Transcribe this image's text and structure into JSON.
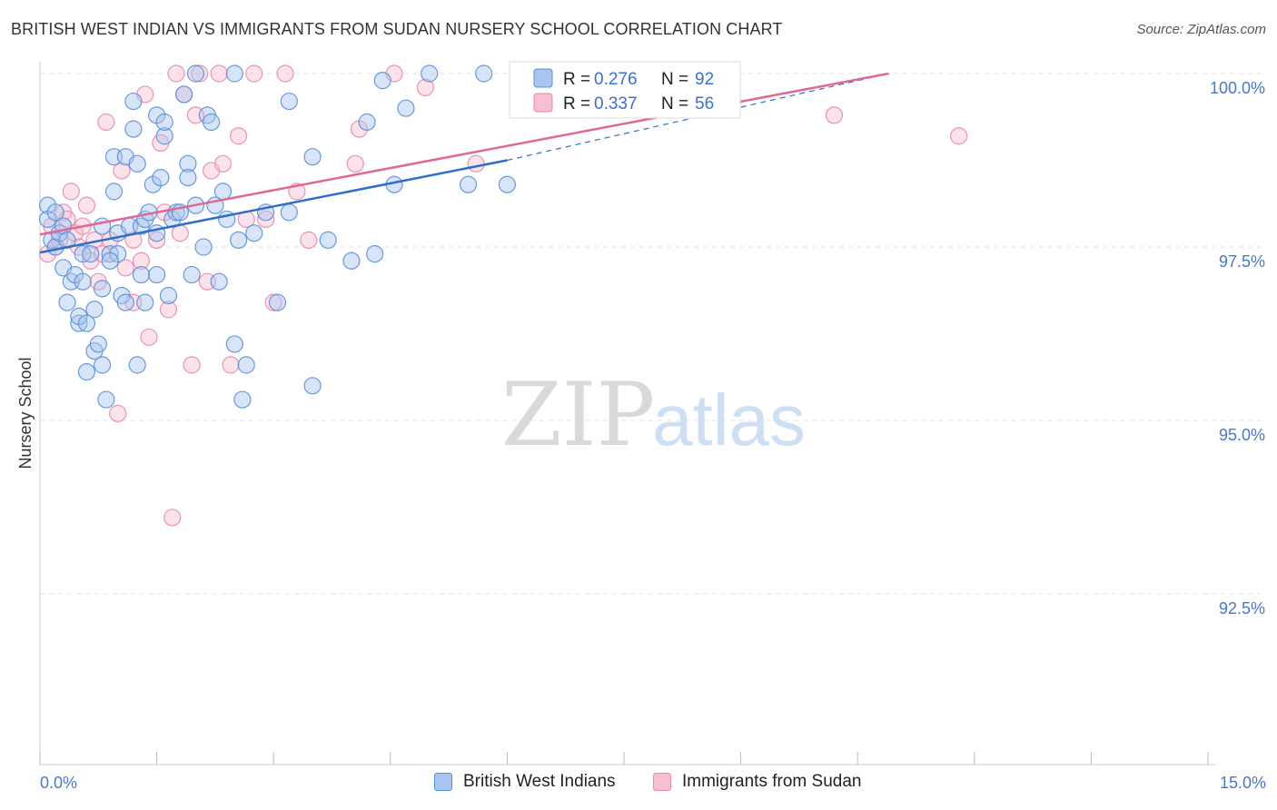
{
  "title": "BRITISH WEST INDIAN VS IMMIGRANTS FROM SUDAN NURSERY SCHOOL CORRELATION CHART",
  "source": "Source: ZipAtlas.com",
  "watermark": {
    "zip": "ZIP",
    "atlas": "atlas"
  },
  "colors": {
    "blue_fill": "#a9c6f0",
    "blue_stroke": "#5b8fd6",
    "blue_line": "#2f6fc9",
    "pink_fill": "#f6bfd2",
    "pink_stroke": "#e58aab",
    "pink_line": "#e06895",
    "grid": "#e3e3e3",
    "tick_label": "#4a78c8"
  },
  "legend": {
    "series": [
      {
        "r_label": "R =",
        "r_value": "0.276",
        "n_label": "N =",
        "n_value": "92"
      },
      {
        "r_label": "R =",
        "r_value": "0.337",
        "n_label": "N =",
        "n_value": "56"
      }
    ]
  },
  "bottom_legend": [
    "British West Indians",
    "Immigrants from Sudan"
  ],
  "chart_data": {
    "type": "scatter",
    "title": "BRITISH WEST INDIAN VS IMMIGRANTS FROM SUDAN NURSERY SCHOOL CORRELATION CHART",
    "xlabel": "",
    "ylabel": "Nursery School",
    "xlim": [
      0,
      15
    ],
    "ylim": [
      90.0,
      100.5
    ],
    "x_tick_labels": {
      "left": "0.0%",
      "right": "15.0%"
    },
    "y_ticks": [
      {
        "value": 100.0,
        "label": "100.0%"
      },
      {
        "value": 97.5,
        "label": "97.5%"
      },
      {
        "value": 95.0,
        "label": "95.0%"
      },
      {
        "value": 92.5,
        "label": "92.5%"
      }
    ],
    "series": [
      {
        "name": "British West Indians",
        "color": "blue",
        "R": 0.276,
        "N": 92,
        "trend": {
          "x0": 0.0,
          "y0": 97.42,
          "x1": 6.0,
          "y1": 98.75,
          "dash_to_x": 10.9,
          "dash_to_y": 100.0
        },
        "points": [
          [
            0.1,
            98.1
          ],
          [
            0.1,
            97.9
          ],
          [
            0.15,
            97.6
          ],
          [
            0.2,
            98.0
          ],
          [
            0.2,
            97.5
          ],
          [
            0.25,
            97.7
          ],
          [
            0.3,
            97.8
          ],
          [
            0.3,
            97.2
          ],
          [
            0.35,
            96.7
          ],
          [
            0.35,
            97.6
          ],
          [
            0.4,
            97.0
          ],
          [
            0.45,
            97.1
          ],
          [
            0.5,
            96.4
          ],
          [
            0.5,
            96.5
          ],
          [
            0.55,
            97.0
          ],
          [
            0.55,
            97.4
          ],
          [
            0.6,
            95.7
          ],
          [
            0.65,
            97.4
          ],
          [
            0.7,
            96.6
          ],
          [
            0.7,
            96.0
          ],
          [
            0.75,
            96.1
          ],
          [
            0.8,
            95.8
          ],
          [
            0.8,
            96.9
          ],
          [
            0.85,
            95.3
          ],
          [
            0.9,
            97.4
          ],
          [
            0.95,
            98.3
          ],
          [
            0.95,
            98.8
          ],
          [
            1.0,
            97.4
          ],
          [
            1.0,
            97.7
          ],
          [
            1.05,
            96.8
          ],
          [
            1.1,
            98.8
          ],
          [
            1.1,
            96.7
          ],
          [
            1.15,
            97.8
          ],
          [
            1.2,
            99.2
          ],
          [
            1.2,
            99.6
          ],
          [
            1.25,
            98.7
          ],
          [
            1.25,
            95.8
          ],
          [
            1.3,
            97.8
          ],
          [
            1.35,
            96.7
          ],
          [
            1.35,
            97.9
          ],
          [
            1.4,
            98.0
          ],
          [
            1.45,
            98.4
          ],
          [
            1.5,
            97.1
          ],
          [
            1.5,
            99.4
          ],
          [
            1.55,
            98.5
          ],
          [
            1.6,
            99.1
          ],
          [
            1.6,
            99.3
          ],
          [
            1.65,
            96.8
          ],
          [
            1.7,
            97.9
          ],
          [
            1.75,
            98.0
          ],
          [
            1.8,
            98.0
          ],
          [
            1.85,
            99.7
          ],
          [
            1.9,
            98.7
          ],
          [
            1.95,
            97.1
          ],
          [
            2.0,
            100.0
          ],
          [
            2.1,
            97.5
          ],
          [
            2.15,
            99.4
          ],
          [
            2.2,
            99.3
          ],
          [
            2.25,
            98.1
          ],
          [
            2.3,
            97.0
          ],
          [
            2.35,
            98.3
          ],
          [
            2.4,
            97.9
          ],
          [
            2.5,
            100.0
          ],
          [
            2.5,
            96.1
          ],
          [
            2.55,
            97.6
          ],
          [
            2.6,
            95.3
          ],
          [
            2.65,
            95.8
          ],
          [
            2.9,
            98.0
          ],
          [
            3.05,
            96.7
          ],
          [
            3.2,
            99.6
          ],
          [
            3.5,
            98.8
          ],
          [
            3.5,
            95.5
          ],
          [
            3.7,
            97.6
          ],
          [
            4.2,
            99.3
          ],
          [
            4.3,
            97.4
          ],
          [
            4.4,
            99.9
          ],
          [
            4.55,
            98.4
          ],
          [
            4.7,
            99.5
          ],
          [
            5.0,
            100.0
          ],
          [
            5.5,
            98.4
          ],
          [
            5.7,
            100.0
          ],
          [
            6.0,
            98.4
          ],
          [
            0.8,
            97.8
          ],
          [
            0.9,
            97.3
          ],
          [
            1.5,
            97.7
          ],
          [
            2.0,
            98.1
          ],
          [
            2.75,
            97.7
          ],
          [
            0.6,
            96.4
          ],
          [
            1.9,
            98.5
          ],
          [
            1.3,
            97.1
          ],
          [
            4.0,
            97.3
          ],
          [
            3.2,
            98.0
          ]
        ]
      },
      {
        "name": "Immigrants from Sudan",
        "color": "pink",
        "R": 0.337,
        "N": 56,
        "trend": {
          "x0": 0.0,
          "y0": 97.68,
          "x1": 10.9,
          "y1": 100.0
        },
        "points": [
          [
            0.1,
            97.4
          ],
          [
            0.15,
            97.8
          ],
          [
            0.2,
            97.5
          ],
          [
            0.25,
            97.6
          ],
          [
            0.3,
            98.0
          ],
          [
            0.35,
            97.9
          ],
          [
            0.4,
            98.3
          ],
          [
            0.45,
            97.7
          ],
          [
            0.5,
            97.5
          ],
          [
            0.55,
            97.8
          ],
          [
            0.6,
            98.1
          ],
          [
            0.65,
            97.3
          ],
          [
            0.75,
            97.0
          ],
          [
            0.8,
            97.4
          ],
          [
            0.85,
            99.3
          ],
          [
            0.9,
            97.6
          ],
          [
            1.0,
            95.1
          ],
          [
            1.05,
            98.6
          ],
          [
            1.1,
            97.2
          ],
          [
            1.2,
            96.7
          ],
          [
            1.3,
            97.3
          ],
          [
            1.35,
            99.7
          ],
          [
            1.4,
            96.2
          ],
          [
            1.5,
            97.6
          ],
          [
            1.55,
            99.0
          ],
          [
            1.6,
            98.0
          ],
          [
            1.65,
            96.6
          ],
          [
            1.7,
            93.6
          ],
          [
            1.75,
            100.0
          ],
          [
            1.8,
            97.7
          ],
          [
            1.85,
            99.7
          ],
          [
            1.95,
            95.8
          ],
          [
            2.0,
            99.4
          ],
          [
            2.05,
            100.0
          ],
          [
            2.15,
            97.0
          ],
          [
            2.2,
            98.6
          ],
          [
            2.3,
            100.0
          ],
          [
            2.35,
            98.7
          ],
          [
            2.45,
            95.8
          ],
          [
            2.55,
            99.1
          ],
          [
            2.65,
            97.9
          ],
          [
            2.75,
            100.0
          ],
          [
            2.9,
            97.9
          ],
          [
            3.0,
            96.7
          ],
          [
            3.15,
            100.0
          ],
          [
            3.3,
            98.3
          ],
          [
            3.45,
            97.6
          ],
          [
            4.05,
            98.7
          ],
          [
            4.1,
            99.2
          ],
          [
            4.55,
            100.0
          ],
          [
            4.95,
            99.8
          ],
          [
            5.6,
            98.7
          ],
          [
            10.2,
            99.4
          ],
          [
            11.8,
            99.1
          ],
          [
            1.2,
            97.6
          ],
          [
            0.7,
            97.6
          ]
        ]
      }
    ]
  }
}
